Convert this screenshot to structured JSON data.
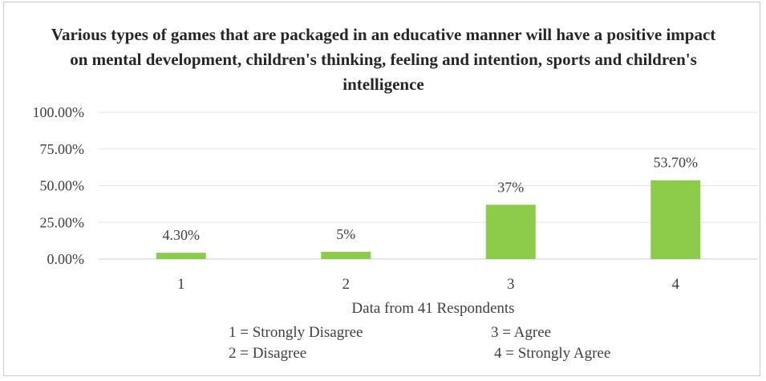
{
  "chart_data": {
    "type": "bar",
    "title": "Various types of games that are packaged in an educative manner will have a positive impact on mental development, children's thinking, feeling and intention, sports and children's intelligence",
    "categories": [
      "1",
      "2",
      "3",
      "4"
    ],
    "values": [
      4.3,
      5,
      37,
      53.7
    ],
    "data_labels": [
      "4.30%",
      "5%",
      "37%",
      "53.70%"
    ],
    "ylim": [
      0,
      100
    ],
    "yticks": [
      0,
      25,
      50,
      75,
      100
    ],
    "ytick_labels": [
      "0.00%",
      "25.00%",
      "50.00%",
      "75.00%",
      "100.00%"
    ],
    "xlabel": "Data from 41 Respondents",
    "ylabel": "",
    "grid": true,
    "bar_color": "#8ccc4a",
    "grid_color": "#e3e3e3",
    "axis_color": "#d0d0d0",
    "legend": {
      "placement": "bottom",
      "items": [
        "1 = Strongly Disagree",
        "3 = Agree",
        "2 = Disagree",
        "4 = Strongly Agree"
      ]
    }
  }
}
